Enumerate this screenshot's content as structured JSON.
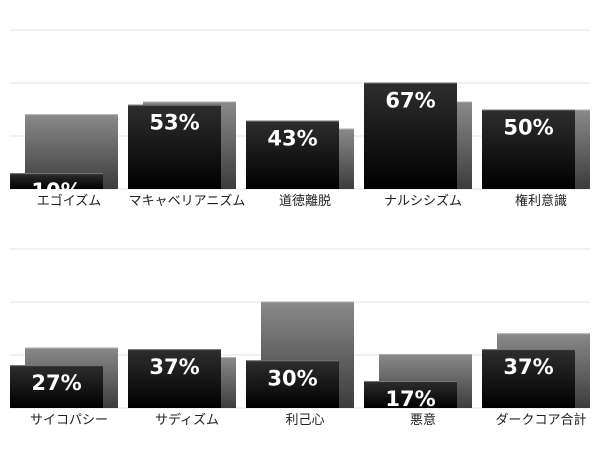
{
  "chart_data": [
    {
      "type": "bar",
      "ylim": [
        0,
        100
      ],
      "grid": true,
      "categories": [
        "エゴイズム",
        "マキャベリアニズム",
        "道徳離脱",
        "ナルシシズム",
        "権利意識"
      ],
      "series": [
        {
          "values": [
            10,
            53,
            43,
            67,
            50
          ],
          "data_labels": [
            "10%",
            "53%",
            "43%",
            "67%",
            "50%"
          ],
          "color": "#111111"
        },
        {
          "values": [
            47,
            55,
            38,
            55,
            50
          ],
          "color": "#666666"
        }
      ]
    },
    {
      "type": "bar",
      "ylim": [
        0,
        100
      ],
      "grid": true,
      "categories": [
        "サイコパシー",
        "サディズム",
        "利己心",
        "悪意",
        "ダークコア合計"
      ],
      "series": [
        {
          "values": [
            27,
            37,
            30,
            17,
            37
          ],
          "data_labels": [
            "27%",
            "37%",
            "30%",
            "17%",
            "37%"
          ],
          "color": "#111111"
        },
        {
          "values": [
            38,
            32,
            67,
            34,
            47
          ],
          "color": "#666666"
        }
      ]
    }
  ]
}
